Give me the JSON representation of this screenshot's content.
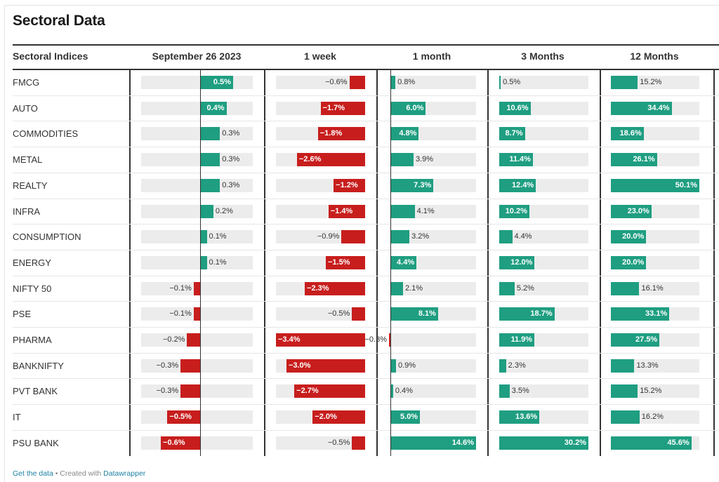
{
  "title": "Sectoral Data",
  "footer": {
    "get_data": "Get the data",
    "separator": " • Created with ",
    "created_with": "Datawrapper"
  },
  "colors": {
    "positive": "#1f9e81",
    "negative": "#c71e1d",
    "track": "#ececec"
  },
  "chart_data": {
    "type": "table",
    "columns": [
      {
        "key": "name",
        "label": "Sectoral Indices"
      },
      {
        "key": "d1",
        "label": "September 26 2023"
      },
      {
        "key": "w1",
        "label": "1 week"
      },
      {
        "key": "m1",
        "label": "1 month"
      },
      {
        "key": "m3",
        "label": "3 Months"
      },
      {
        "key": "m12",
        "label": "12 Months"
      }
    ],
    "rows": [
      {
        "name": "FMCG",
        "values": [
          0.5,
          -0.6,
          0.8,
          0.5,
          15.2
        ],
        "labels": [
          "0.5%",
          "−0.6%",
          "0.8%",
          "0.5%",
          "15.2%"
        ]
      },
      {
        "name": "AUTO",
        "values": [
          0.4,
          -1.7,
          6.0,
          10.6,
          34.4
        ],
        "labels": [
          "0.4%",
          "−1.7%",
          "6.0%",
          "10.6%",
          "34.4%"
        ]
      },
      {
        "name": "COMMODITIES",
        "values": [
          0.3,
          -1.8,
          4.8,
          8.7,
          18.6
        ],
        "labels": [
          "0.3%",
          "−1.8%",
          "4.8%",
          "8.7%",
          "18.6%"
        ]
      },
      {
        "name": "METAL",
        "values": [
          0.3,
          -2.6,
          3.9,
          11.4,
          26.1
        ],
        "labels": [
          "0.3%",
          "−2.6%",
          "3.9%",
          "11.4%",
          "26.1%"
        ]
      },
      {
        "name": "REALTY",
        "values": [
          0.3,
          -1.2,
          7.3,
          12.4,
          50.1
        ],
        "labels": [
          "0.3%",
          "−1.2%",
          "7.3%",
          "12.4%",
          "50.1%"
        ]
      },
      {
        "name": "INFRA",
        "values": [
          0.2,
          -1.4,
          4.1,
          10.2,
          23.0
        ],
        "labels": [
          "0.2%",
          "−1.4%",
          "4.1%",
          "10.2%",
          "23.0%"
        ]
      },
      {
        "name": "CONSUMPTION",
        "values": [
          0.1,
          -0.9,
          3.2,
          4.4,
          20.0
        ],
        "labels": [
          "0.1%",
          "−0.9%",
          "3.2%",
          "4.4%",
          "20.0%"
        ]
      },
      {
        "name": "ENERGY",
        "values": [
          0.1,
          -1.5,
          4.4,
          12.0,
          20.0
        ],
        "labels": [
          "0.1%",
          "−1.5%",
          "4.4%",
          "12.0%",
          "20.0%"
        ]
      },
      {
        "name": "NIFTY 50",
        "values": [
          -0.1,
          -2.3,
          2.1,
          5.2,
          16.1
        ],
        "labels": [
          "−0.1%",
          "−2.3%",
          "2.1%",
          "5.2%",
          "16.1%"
        ]
      },
      {
        "name": "PSE",
        "values": [
          -0.1,
          -0.5,
          8.1,
          18.7,
          33.1
        ],
        "labels": [
          "−0.1%",
          "−0.5%",
          "8.1%",
          "18.7%",
          "33.1%"
        ]
      },
      {
        "name": "PHARMA",
        "values": [
          -0.2,
          -3.4,
          -0.3,
          11.9,
          27.5
        ],
        "labels": [
          "−0.2%",
          "−3.4%",
          "−0.3%",
          "11.9%",
          "27.5%"
        ]
      },
      {
        "name": "BANKNIFTY",
        "values": [
          -0.3,
          -3.0,
          0.9,
          2.3,
          13.3
        ],
        "labels": [
          "−0.3%",
          "−3.0%",
          "0.9%",
          "2.3%",
          "13.3%"
        ]
      },
      {
        "name": "PVT BANK",
        "values": [
          -0.3,
          -2.7,
          0.4,
          3.5,
          15.2
        ],
        "labels": [
          "−0.3%",
          "−2.7%",
          "0.4%",
          "3.5%",
          "15.2%"
        ]
      },
      {
        "name": "IT",
        "values": [
          -0.5,
          -2.0,
          5.0,
          13.6,
          16.2
        ],
        "labels": [
          "−0.5%",
          "−2.0%",
          "5.0%",
          "13.6%",
          "16.2%"
        ]
      },
      {
        "name": "PSU BANK",
        "values": [
          -0.6,
          -0.5,
          14.6,
          30.2,
          45.6
        ],
        "labels": [
          "−0.6%",
          "−0.5%",
          "14.6%",
          "30.2%",
          "45.6%"
        ]
      }
    ],
    "column_ranges": [
      [
        -0.9,
        0.8
      ],
      [
        -3.4,
        0
      ],
      [
        -0.3,
        14.6
      ],
      [
        0,
        30.2
      ],
      [
        0,
        50.1
      ]
    ]
  }
}
